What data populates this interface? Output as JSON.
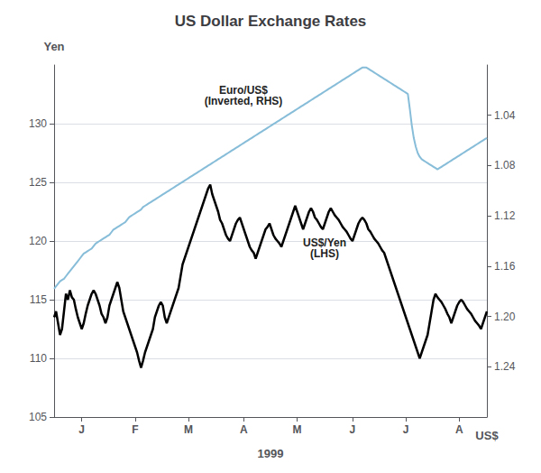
{
  "chart_data": {
    "type": "line",
    "title": "US Dollar Exchange Rates",
    "x_label": "1999",
    "y_label": "Yen",
    "y2_label": "US$",
    "categories": [
      null,
      null,
      null,
      null,
      null,
      null,
      null,
      null,
      null,
      null,
      null,
      null,
      null,
      null,
      "J",
      null,
      null,
      null,
      null,
      null,
      null,
      null,
      null,
      null,
      null,
      null,
      null,
      null,
      null,
      null,
      null,
      null,
      null,
      null,
      null,
      null,
      null,
      null,
      null,
      null,
      null,
      "F",
      null,
      null,
      null,
      null,
      null,
      null,
      null,
      null,
      null,
      null,
      null,
      null,
      null,
      null,
      null,
      null,
      null,
      null,
      null,
      null,
      null,
      null,
      null,
      null,
      null,
      null,
      "M",
      null,
      null,
      null,
      null,
      null,
      null,
      null,
      null,
      null,
      null,
      null,
      null,
      null,
      null,
      null,
      null,
      null,
      null,
      null,
      null,
      null,
      null,
      null,
      null,
      null,
      null,
      null,
      "A",
      null,
      null,
      null,
      null,
      null,
      null,
      null,
      null,
      null,
      null,
      null,
      null,
      null,
      null,
      null,
      null,
      null,
      null,
      null,
      null,
      null,
      null,
      null,
      null,
      null,
      null,
      "M",
      null,
      null,
      null,
      null,
      null,
      null,
      null,
      null,
      null,
      null,
      null,
      null,
      null,
      null,
      null,
      null,
      null,
      null,
      null,
      null,
      null,
      null,
      null,
      null,
      null,
      null,
      null,
      "J",
      null,
      null,
      null,
      null,
      null,
      null,
      null,
      null,
      null,
      null,
      null,
      null,
      null,
      null,
      null,
      null,
      null,
      null,
      null,
      null,
      null,
      null,
      null,
      null,
      null,
      null,
      "J",
      null,
      null,
      null,
      null,
      null,
      null,
      null,
      null,
      null,
      null,
      null,
      null,
      null,
      null,
      null,
      null,
      null,
      null,
      null,
      null,
      null,
      null,
      null,
      null,
      null,
      null,
      "A",
      null,
      null,
      null,
      null,
      null,
      null,
      null,
      null,
      null,
      null,
      null,
      null,
      null,
      null
    ],
    "series": [
      {
        "color": "#000000",
        "values": [
          113.5,
          114.0,
          113.0,
          112.0,
          112.5,
          114.0,
          115.5,
          115.0,
          115.8,
          115.2,
          115.0,
          114.2,
          113.5,
          113.0,
          112.5,
          113.0,
          113.8,
          114.5,
          115.0,
          115.5,
          115.8,
          115.5,
          115.0,
          114.5,
          113.8,
          113.5,
          113.0,
          113.5,
          114.5,
          115.0,
          115.5,
          116.0,
          116.5,
          116.0,
          115.0,
          114.0,
          113.5,
          113.0,
          112.5,
          112.0,
          111.5,
          111.0,
          110.5,
          109.8,
          109.2,
          109.8,
          110.5,
          111.0,
          111.5,
          112.0,
          112.5,
          113.5,
          114.0,
          114.5,
          114.8,
          114.5,
          113.5,
          113.0,
          113.5,
          114.0,
          114.5,
          115.0,
          115.5,
          116.0,
          117.0,
          118.0,
          118.5,
          119.0,
          119.5,
          120.0,
          120.5,
          121.0,
          121.5,
          122.0,
          122.5,
          123.0,
          123.5,
          124.0,
          124.5,
          124.8,
          124.0,
          123.5,
          123.0,
          122.5,
          121.8,
          121.5,
          121.0,
          120.5,
          120.2,
          120.0,
          120.5,
          121.0,
          121.5,
          121.8,
          122.0,
          121.5,
          121.0,
          120.5,
          120.0,
          119.5,
          119.2,
          119.0,
          118.5,
          119.0,
          119.5,
          120.0,
          120.5,
          121.0,
          121.2,
          121.5,
          121.0,
          120.5,
          120.2,
          120.0,
          119.8,
          119.5,
          120.0,
          120.5,
          121.0,
          121.5,
          122.0,
          122.5,
          123.0,
          122.5,
          122.0,
          121.5,
          121.0,
          121.5,
          122.0,
          122.5,
          122.8,
          122.5,
          122.0,
          121.8,
          121.5,
          121.2,
          121.0,
          121.5,
          122.0,
          122.5,
          122.8,
          122.5,
          122.2,
          122.0,
          121.8,
          121.5,
          121.2,
          121.0,
          120.8,
          120.5,
          120.2,
          120.0,
          120.5,
          121.0,
          121.5,
          121.8,
          122.0,
          121.8,
          121.5,
          121.0,
          120.8,
          120.5,
          120.2,
          120.0,
          119.8,
          119.5,
          119.2,
          119.0,
          118.5,
          118.0,
          117.5,
          117.0,
          116.5,
          116.0,
          115.5,
          115.0,
          114.5,
          114.0,
          113.5,
          113.0,
          112.5,
          112.0,
          111.5,
          111.0,
          110.5,
          110.0,
          110.5,
          111.0,
          111.5,
          112.0,
          113.0,
          114.0,
          115.0,
          115.5,
          115.2,
          115.0,
          114.8,
          114.5,
          114.2,
          113.8,
          113.5,
          113.0,
          113.5,
          114.0,
          114.5,
          114.8,
          115.0,
          114.8,
          114.5,
          114.2,
          114.0,
          113.8,
          113.5,
          113.2,
          113.0,
          112.8,
          112.5,
          113.0,
          113.5,
          114.0
        ]
      },
      {
        "color": "#87bdd8",
        "axis": "y2",
        "values": [
          1.178,
          1.176,
          1.174,
          1.172,
          1.171,
          1.17,
          1.168,
          1.166,
          1.164,
          1.162,
          1.16,
          1.158,
          1.156,
          1.154,
          1.152,
          1.15,
          1.149,
          1.148,
          1.147,
          1.146,
          1.144,
          1.142,
          1.141,
          1.14,
          1.139,
          1.138,
          1.137,
          1.136,
          1.135,
          1.133,
          1.131,
          1.13,
          1.129,
          1.128,
          1.127,
          1.126,
          1.125,
          1.123,
          1.121,
          1.12,
          1.119,
          1.118,
          1.117,
          1.116,
          1.115,
          1.113,
          1.112,
          1.111,
          1.11,
          1.109,
          1.108,
          1.107,
          1.106,
          1.105,
          1.104,
          1.103,
          1.102,
          1.101,
          1.1,
          1.099,
          1.098,
          1.097,
          1.096,
          1.095,
          1.094,
          1.093,
          1.092,
          1.091,
          1.09,
          1.089,
          1.088,
          1.087,
          1.086,
          1.085,
          1.084,
          1.083,
          1.082,
          1.081,
          1.08,
          1.079,
          1.078,
          1.077,
          1.076,
          1.075,
          1.074,
          1.073,
          1.072,
          1.071,
          1.07,
          1.069,
          1.068,
          1.067,
          1.066,
          1.065,
          1.064,
          1.063,
          1.062,
          1.061,
          1.06,
          1.059,
          1.058,
          1.057,
          1.056,
          1.055,
          1.054,
          1.053,
          1.052,
          1.051,
          1.05,
          1.049,
          1.048,
          1.047,
          1.046,
          1.045,
          1.044,
          1.043,
          1.042,
          1.041,
          1.04,
          1.039,
          1.038,
          1.037,
          1.036,
          1.035,
          1.034,
          1.033,
          1.032,
          1.031,
          1.03,
          1.029,
          1.028,
          1.027,
          1.026,
          1.025,
          1.024,
          1.023,
          1.022,
          1.021,
          1.02,
          1.019,
          1.018,
          1.017,
          1.016,
          1.015,
          1.014,
          1.013,
          1.012,
          1.011,
          1.01,
          1.009,
          1.008,
          1.007,
          1.006,
          1.005,
          1.004,
          1.003,
          1.002,
          1.002,
          1.002,
          1.003,
          1.004,
          1.005,
          1.006,
          1.007,
          1.008,
          1.009,
          1.01,
          1.011,
          1.012,
          1.013,
          1.014,
          1.015,
          1.016,
          1.017,
          1.018,
          1.019,
          1.02,
          1.021,
          1.022,
          1.023,
          1.035,
          1.048,
          1.058,
          1.065,
          1.07,
          1.073,
          1.075,
          1.076,
          1.077,
          1.078,
          1.079,
          1.08,
          1.081,
          1.082,
          1.083,
          1.082,
          1.081,
          1.08,
          1.079,
          1.078,
          1.077,
          1.076,
          1.075,
          1.074,
          1.073,
          1.072,
          1.071,
          1.07,
          1.069,
          1.068,
          1.067,
          1.066,
          1.065,
          1.064,
          1.063,
          1.062,
          1.061,
          1.06,
          1.059,
          1.058
        ]
      }
    ],
    "ylim": [
      105,
      135
    ],
    "yticks": [
      105,
      110,
      115,
      120,
      125,
      130
    ],
    "y2lim": [
      1.28,
      1.0
    ],
    "y2ticks": [
      1.04,
      1.08,
      1.12,
      1.16,
      {
        "value": 1.2,
        "label": "1.20"
      },
      1.24
    ],
    "grid": true,
    "annotations": [
      {
        "text": "Euro/US$\n(Inverted, RHS)"
      },
      {
        "text": "US$/Yen\n(LHS)"
      }
    ]
  }
}
